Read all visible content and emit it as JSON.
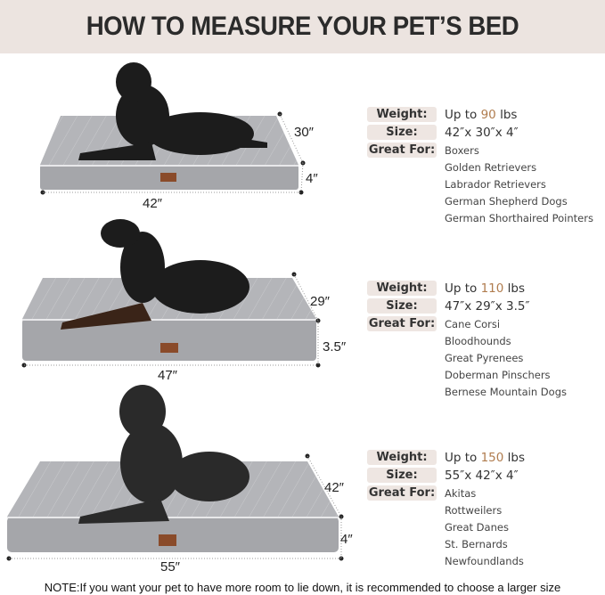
{
  "header": {
    "title": "HOW TO MEASURE YOUR PET’S BED"
  },
  "labels": {
    "weight": "Weight:",
    "size": "Size:",
    "great_for": "Great For:"
  },
  "colors": {
    "accent": "#b07c4e",
    "header_bg": "#ece4e0",
    "bed": "#a9aaae",
    "dog": "#1c1c1c"
  },
  "sections": [
    {
      "weight_prefix": "Up to ",
      "weight_value": "90",
      "weight_unit": " lbs",
      "size": "42″x 30″x 4″",
      "dims": {
        "length": "42″",
        "width": "30″",
        "height": "4″"
      },
      "great_for": [
        "Boxers",
        "Golden Retrievers",
        "Labrador Retrievers",
        "German Shepherd Dogs",
        "German Shorthaired Pointers"
      ]
    },
    {
      "weight_prefix": "Up to ",
      "weight_value": "110",
      "weight_unit": " lbs",
      "size": "47″x 29″x 3.5″",
      "dims": {
        "length": "47″",
        "width": "29″",
        "height": "3.5″"
      },
      "great_for": [
        "Cane Corsi",
        "Bloodhounds",
        "Great Pyrenees",
        "Doberman Pinschers",
        "Bernese Mountain Dogs"
      ]
    },
    {
      "weight_prefix": "Up to ",
      "weight_value": "150",
      "weight_unit": " lbs",
      "size": "55″x 42″x 4″",
      "dims": {
        "length": "55″",
        "width": "42″",
        "height": "4″"
      },
      "great_for": [
        "Akitas",
        "Rottweilers",
        "Great Danes",
        "St. Bernards",
        "Newfoundlands"
      ]
    }
  ],
  "note": "NOTE:If you want your pet to have more room to lie down, it is recommended to choose a larger size"
}
